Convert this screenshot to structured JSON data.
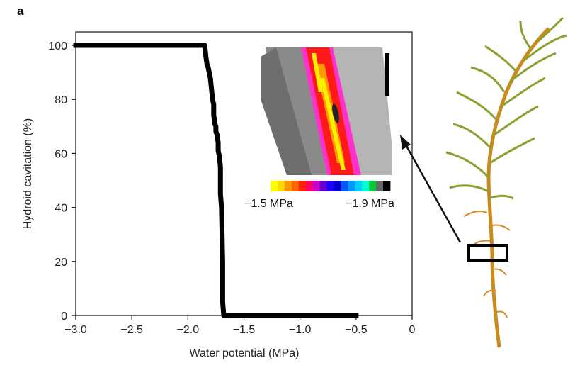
{
  "panel": {
    "letter": "a"
  },
  "chart_data": {
    "type": "line",
    "title": "",
    "xlabel": "Water potential (MPa)",
    "ylabel": "Hydroid cavitation (%)",
    "xlim": [
      -3.0,
      0
    ],
    "ylim": [
      0,
      105
    ],
    "x_ticks": [
      -3.0,
      -2.5,
      -2.0,
      -1.5,
      -1.0,
      -0.5,
      0
    ],
    "x_tick_labels": [
      "−3.0",
      "−2.5",
      "−2.0",
      "−1.5",
      "−1.0",
      "−0.5",
      "0"
    ],
    "y_ticks": [
      0,
      20,
      40,
      60,
      80,
      100
    ],
    "y_tick_labels": [
      "0",
      "20",
      "40",
      "60",
      "80",
      "100"
    ],
    "grid": false,
    "series": [
      {
        "x": [
          -3.0,
          -1.85,
          -1.84,
          -1.83,
          -1.82,
          -1.81,
          -1.8,
          -1.79,
          -1.78,
          -1.77,
          -1.77,
          -1.76,
          -1.76,
          -1.75,
          -1.75,
          -1.74,
          -1.73,
          -1.73,
          -1.72,
          -1.71,
          -1.71,
          -1.7,
          -1.69,
          -1.69,
          -1.68,
          -1.5,
          -1.0,
          -0.5
        ],
        "y": [
          100,
          100,
          96,
          93,
          92,
          90,
          88,
          84,
          80,
          78,
          74,
          72,
          71,
          70,
          68,
          67,
          64,
          61,
          59,
          55,
          45,
          40,
          20,
          5,
          0,
          0,
          0,
          0
        ],
        "color": "#000000"
      }
    ],
    "inset_colorbar": {
      "left_label": "−1.5 MPa",
      "right_label": "−1.9 MPa",
      "colors": [
        "#ffff00",
        "#ffd700",
        "#ff9900",
        "#ff6600",
        "#ff2200",
        "#ff0066",
        "#cc00cc",
        "#6600cc",
        "#2200ff",
        "#0000cc",
        "#0055ff",
        "#0099ff",
        "#00ccff",
        "#00ffcc",
        "#00cc33",
        "#666666",
        "#000000"
      ]
    }
  }
}
